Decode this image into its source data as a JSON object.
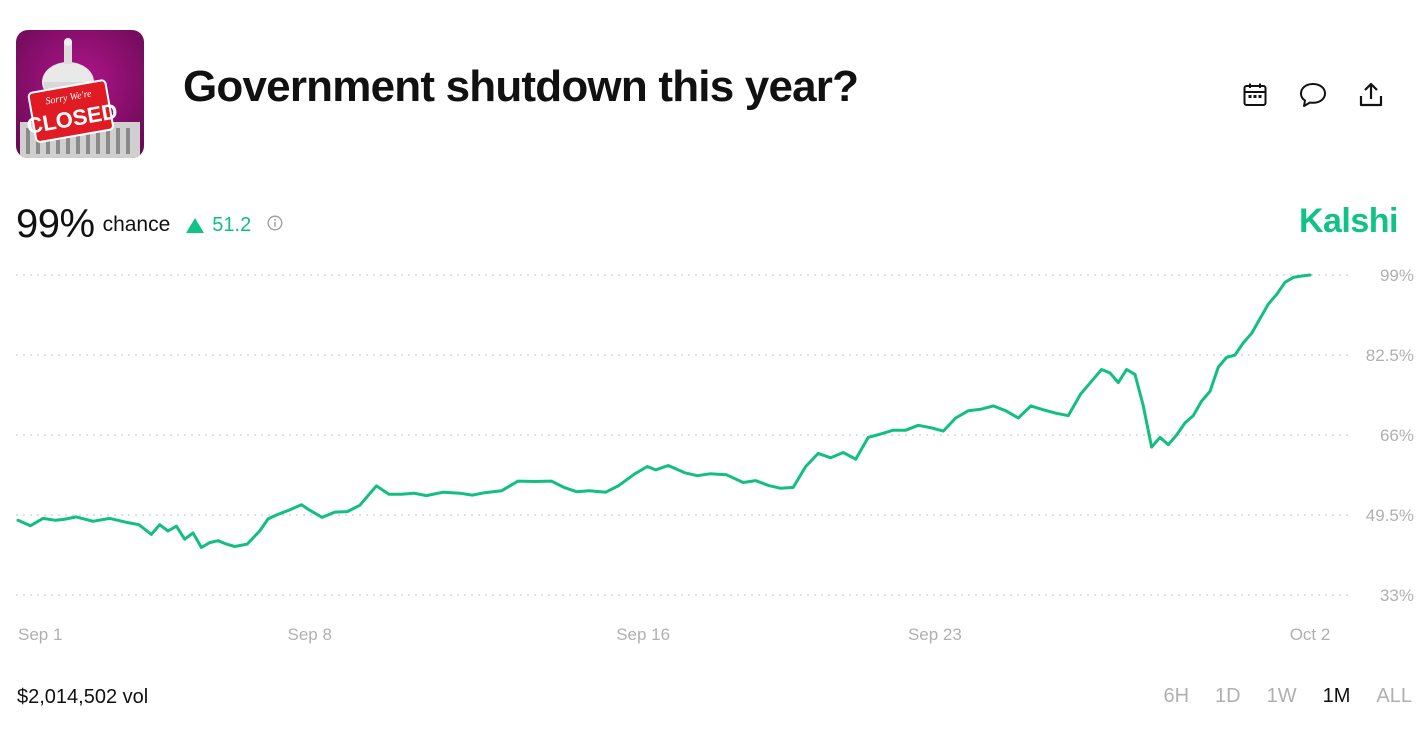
{
  "market": {
    "title": "Government shutdown this year?",
    "image_icon": "capitol-closed-sign-image",
    "image_sign_text_top": "Sorry We're",
    "image_sign_text_main": "CLOSED"
  },
  "actions": [
    {
      "icon": "calendar-icon"
    },
    {
      "icon": "comment-icon"
    },
    {
      "icon": "share-icon"
    }
  ],
  "stats": {
    "probability": "99%",
    "chance_label": "chance",
    "change": "51.2",
    "change_direction": "up",
    "info_icon": "info-icon"
  },
  "brand": "Kalshi",
  "volume": "$2,014,502 vol",
  "ranges": [
    {
      "label": "6H",
      "active": false
    },
    {
      "label": "1D",
      "active": false
    },
    {
      "label": "1W",
      "active": false
    },
    {
      "label": "1M",
      "active": true
    },
    {
      "label": "ALL",
      "active": false
    }
  ],
  "colors": {
    "accent": "#10c384",
    "line": "#12bf80",
    "grid": "#d6d6d6",
    "muted": "#b0b0b0"
  },
  "chart_data": {
    "type": "line",
    "ylim": [
      33,
      99
    ],
    "y_ticks": [
      "99%",
      "82.5%",
      "66%",
      "49.5%",
      "33%"
    ],
    "y_tick_values": [
      99,
      82.5,
      66,
      49.5,
      33
    ],
    "x_ticks": [
      "Sep 1",
      "Sep 8",
      "Sep 16",
      "Sep 23",
      "Oct 2"
    ],
    "x_tick_values": [
      1,
      8,
      16,
      23,
      32
    ],
    "xlim": [
      1,
      32
    ],
    "grid": true,
    "series": [
      {
        "x": [
          1.0,
          1.3,
          1.6,
          1.9,
          2.1,
          2.4,
          2.8,
          3.2,
          3.6,
          3.9,
          4.2,
          4.4,
          4.6,
          4.8,
          5.0,
          5.2,
          5.4,
          5.6,
          5.8,
          6.0,
          6.2,
          6.5,
          6.8,
          7.0,
          7.2,
          7.5,
          7.8,
          8.0,
          8.3,
          8.6,
          8.9,
          9.2,
          9.6,
          9.9,
          10.2,
          10.5,
          10.8,
          11.2,
          11.6,
          11.9,
          12.2,
          12.6,
          13.0,
          13.4,
          13.8,
          14.1,
          14.4,
          14.7,
          15.1,
          15.4,
          15.8,
          16.1,
          16.3,
          16.6,
          17.0,
          17.3,
          17.6,
          18.0,
          18.4,
          18.7,
          19.0,
          19.3,
          19.6,
          19.9,
          20.2,
          20.5,
          20.8,
          21.1,
          21.4,
          21.7,
          22.0,
          22.3,
          22.6,
          22.9,
          23.2,
          23.5,
          23.8,
          24.1,
          24.4,
          24.7,
          25.0,
          25.3,
          25.6,
          25.9,
          26.2,
          26.5,
          26.8,
          27.0,
          27.2,
          27.4,
          27.6,
          27.8,
          28.0,
          28.2,
          28.4,
          28.6,
          28.8,
          29.0,
          29.2,
          29.4,
          29.6,
          29.8,
          30.0,
          30.2,
          30.4,
          30.6,
          30.8,
          31.0,
          31.2,
          31.4,
          31.6,
          31.8,
          32.0
        ],
        "values": [
          48.4,
          47.3,
          48.8,
          48.4,
          48.6,
          49.1,
          48.2,
          48.8,
          48.0,
          47.5,
          45.5,
          47.5,
          46.2,
          47.2,
          44.5,
          45.8,
          42.8,
          43.8,
          44.2,
          43.5,
          43.0,
          43.5,
          46.2,
          48.7,
          49.5,
          50.5,
          51.6,
          50.5,
          49.0,
          50.1,
          50.2,
          51.5,
          55.5,
          53.8,
          53.8,
          54.0,
          53.5,
          54.2,
          54.0,
          53.6,
          54.1,
          54.5,
          56.5,
          56.4,
          56.5,
          55.2,
          54.3,
          54.5,
          54.2,
          55.5,
          58.0,
          59.5,
          58.8,
          59.7,
          58.2,
          57.6,
          58.0,
          57.8,
          56.2,
          56.6,
          55.6,
          55.0,
          55.2,
          59.5,
          62.2,
          61.3,
          62.4,
          61.0,
          65.5,
          66.2,
          67.0,
          67.0,
          68.0,
          67.5,
          66.8,
          69.5,
          71.0,
          71.3,
          72.0,
          71.0,
          69.5,
          72.0,
          71.2,
          70.5,
          70.0,
          74.5,
          77.5,
          79.5,
          78.8,
          76.8,
          79.5,
          78.5,
          72.0,
          63.5,
          65.5,
          64.0,
          66.0,
          68.5,
          70.0,
          73.0,
          75.0,
          80.0,
          82.0,
          82.5,
          85.0,
          87.0,
          90.0,
          93.0,
          95.0,
          97.5,
          98.5,
          98.8,
          99.0
        ]
      }
    ]
  }
}
